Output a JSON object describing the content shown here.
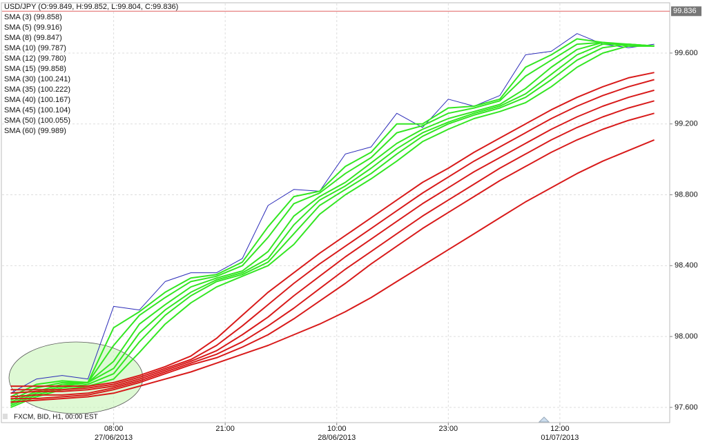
{
  "chart_data": {
    "type": "line",
    "footer": "FXCM, BID, H1, 00:00 EST",
    "x": [
      0,
      3,
      6,
      9,
      12,
      15,
      18,
      21,
      24,
      27,
      30,
      33,
      36,
      39,
      42,
      45,
      48,
      51,
      54,
      57,
      60,
      63,
      66,
      69,
      72,
      75
    ],
    "xlim": [
      -1,
      76.8
    ],
    "xticks": [
      {
        "value": 12,
        "label": "08:00"
      },
      {
        "value": 25,
        "label": "21:00"
      },
      {
        "value": 38,
        "label": "10:00"
      },
      {
        "value": 51,
        "label": "23:00"
      },
      {
        "value": 64,
        "label": "12:00"
      }
    ],
    "xtick_dates": [
      {
        "value": 12,
        "label": "27/06/2013"
      },
      {
        "value": 38,
        "label": "28/06/2013"
      },
      {
        "value": 64,
        "label": "01/07/2013"
      }
    ],
    "ylim": [
      97.514,
      99.88
    ],
    "yticks": [
      {
        "value": 97.6,
        "label": "97.600"
      },
      {
        "value": 98.0,
        "label": "98.000"
      },
      {
        "value": 98.4,
        "label": "98.400"
      },
      {
        "value": 98.8,
        "label": "98.800"
      },
      {
        "value": 99.2,
        "label": "99.200"
      },
      {
        "value": 99.6,
        "label": "99.600"
      }
    ],
    "current_price": 99.836,
    "current_price_color": "#e06060",
    "grid": true,
    "series": [
      {
        "name": "USD/JPY (O:99.849, H:99.852, L:99.804, C:99.836)",
        "color": "#2a2ab8",
        "values": [
          97.68,
          97.76,
          97.78,
          97.76,
          98.17,
          98.15,
          98.31,
          98.36,
          98.36,
          98.44,
          98.74,
          98.83,
          98.82,
          99.03,
          99.07,
          99.26,
          99.18,
          99.34,
          99.3,
          99.36,
          99.59,
          99.61,
          99.71,
          99.65,
          99.63,
          99.65
        ]
      },
      {
        "name": "SMA (3) (99.858)",
        "color": "#33e622",
        "values": [
          97.66,
          97.73,
          97.75,
          97.74,
          98.05,
          98.14,
          98.25,
          98.33,
          98.35,
          98.42,
          98.62,
          98.79,
          98.82,
          98.96,
          99.04,
          99.2,
          99.2,
          99.29,
          99.3,
          99.34,
          99.52,
          99.59,
          99.68,
          99.66,
          99.64,
          99.64
        ]
      },
      {
        "name": "SMA (5) (99.916)",
        "color": "#33e622",
        "values": [
          97.64,
          97.71,
          97.74,
          97.74,
          97.95,
          98.12,
          98.22,
          98.31,
          98.34,
          98.4,
          98.56,
          98.75,
          98.81,
          98.92,
          99.01,
          99.15,
          99.19,
          99.26,
          99.29,
          99.33,
          99.47,
          99.56,
          99.65,
          99.66,
          99.64,
          99.64
        ]
      },
      {
        "name": "SMA (8) (99.847)",
        "color": "#33e622",
        "values": [
          97.63,
          97.69,
          97.73,
          97.74,
          97.86,
          98.07,
          98.18,
          98.28,
          98.33,
          98.37,
          98.48,
          98.68,
          98.79,
          98.87,
          98.98,
          99.09,
          99.17,
          99.23,
          99.27,
          99.31,
          99.4,
          99.52,
          99.62,
          99.66,
          99.65,
          99.64
        ]
      },
      {
        "name": "SMA (10) (99.787)",
        "color": "#33e622",
        "values": [
          97.62,
          97.68,
          97.72,
          97.74,
          97.82,
          98.02,
          98.15,
          98.25,
          98.32,
          98.36,
          98.44,
          98.63,
          98.77,
          98.85,
          98.95,
          99.06,
          99.15,
          99.21,
          99.26,
          99.3,
          99.37,
          99.48,
          99.59,
          99.65,
          99.65,
          99.64
        ]
      },
      {
        "name": "SMA (12) (99.780)",
        "color": "#33e622",
        "values": [
          97.61,
          97.67,
          97.71,
          97.73,
          97.79,
          97.97,
          98.12,
          98.23,
          98.31,
          98.35,
          98.42,
          98.58,
          98.74,
          98.83,
          98.92,
          99.03,
          99.13,
          99.2,
          99.25,
          99.29,
          99.35,
          99.45,
          99.56,
          99.63,
          99.65,
          99.64
        ]
      },
      {
        "name": "SMA (15) (99.858)",
        "color": "#33e622",
        "values": [
          97.6,
          97.66,
          97.7,
          97.72,
          97.76,
          97.91,
          98.07,
          98.19,
          98.28,
          98.34,
          98.4,
          98.52,
          98.69,
          98.8,
          98.89,
          98.99,
          99.1,
          99.17,
          99.23,
          99.27,
          99.32,
          99.41,
          99.52,
          99.6,
          99.64,
          99.64
        ]
      },
      {
        "name": "SMA (30) (100.241)",
        "color": "#d81a1a",
        "values": [
          97.72,
          97.72,
          97.72,
          97.72,
          97.74,
          97.78,
          97.83,
          97.89,
          97.99,
          98.12,
          98.25,
          98.36,
          98.47,
          98.57,
          98.67,
          98.77,
          98.87,
          98.95,
          99.04,
          99.12,
          99.2,
          99.28,
          99.35,
          99.41,
          99.46,
          99.49
        ]
      },
      {
        "name": "SMA (35) (100.222)",
        "color": "#d81a1a",
        "values": [
          97.7,
          97.7,
          97.7,
          97.71,
          97.73,
          97.77,
          97.82,
          97.87,
          97.95,
          98.06,
          98.18,
          98.3,
          98.41,
          98.51,
          98.61,
          98.71,
          98.81,
          98.9,
          98.99,
          99.07,
          99.15,
          99.23,
          99.3,
          99.36,
          99.41,
          99.45
        ]
      },
      {
        "name": "SMA (40) (100.167)",
        "color": "#d81a1a",
        "values": [
          97.68,
          97.69,
          97.69,
          97.7,
          97.72,
          97.76,
          97.81,
          97.86,
          97.92,
          98.01,
          98.11,
          98.23,
          98.34,
          98.45,
          98.55,
          98.65,
          98.75,
          98.84,
          98.93,
          99.01,
          99.09,
          99.17,
          99.24,
          99.3,
          99.35,
          99.39
        ]
      },
      {
        "name": "SMA (45) (100.104)",
        "color": "#d81a1a",
        "values": [
          97.66,
          97.67,
          97.67,
          97.68,
          97.71,
          97.75,
          97.8,
          97.85,
          97.9,
          97.97,
          98.06,
          98.16,
          98.27,
          98.38,
          98.48,
          98.58,
          98.68,
          98.77,
          98.86,
          98.95,
          99.03,
          99.11,
          99.18,
          99.24,
          99.29,
          99.33
        ]
      },
      {
        "name": "SMA (50) (100.055)",
        "color": "#d81a1a",
        "values": [
          97.65,
          97.65,
          97.66,
          97.67,
          97.7,
          97.74,
          97.79,
          97.84,
          97.88,
          97.94,
          98.01,
          98.1,
          98.2,
          98.3,
          98.41,
          98.51,
          98.61,
          98.7,
          98.79,
          98.88,
          98.96,
          99.04,
          99.11,
          99.17,
          99.22,
          99.26
        ]
      },
      {
        "name": "SMA (60) (99.989)",
        "color": "#d81a1a",
        "values": [
          97.63,
          97.64,
          97.65,
          97.66,
          97.68,
          97.72,
          97.76,
          97.8,
          97.85,
          97.9,
          97.95,
          98.01,
          98.07,
          98.14,
          98.22,
          98.31,
          98.4,
          98.49,
          98.58,
          98.67,
          98.76,
          98.84,
          98.92,
          98.99,
          99.05,
          99.11
        ]
      }
    ]
  }
}
